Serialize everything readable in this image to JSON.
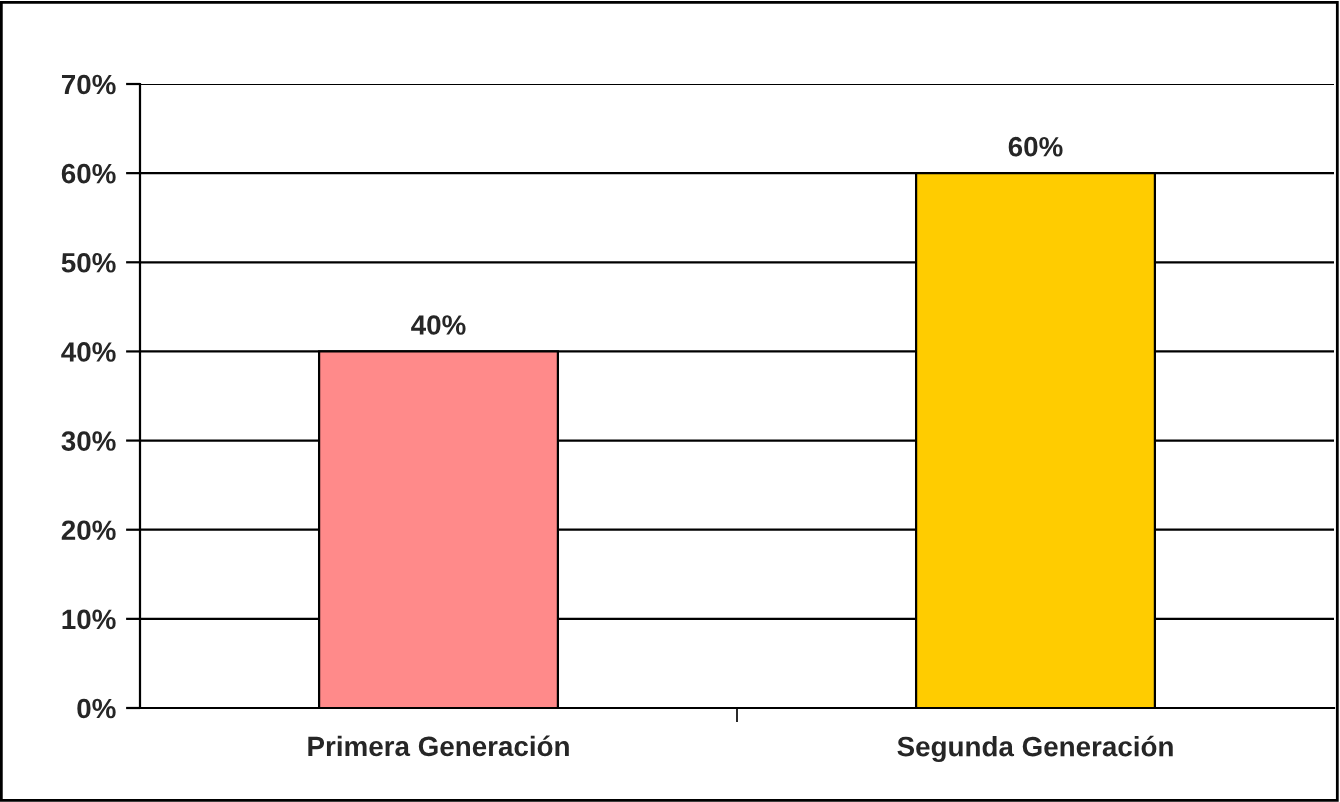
{
  "chart_data": {
    "type": "bar",
    "categories": [
      "Primera Generación",
      "Segunda Generación"
    ],
    "values": [
      40,
      60
    ],
    "colors": [
      "#ff8a8a",
      "#ffcc00"
    ],
    "value_labels": [
      "40%",
      "60%"
    ],
    "ylim": [
      0,
      70
    ],
    "yticks": [
      {
        "value": 0,
        "label": "0%"
      },
      {
        "value": 10,
        "label": "10%"
      },
      {
        "value": 20,
        "label": "20%"
      },
      {
        "value": 30,
        "label": "30%"
      },
      {
        "value": 40,
        "label": "40%"
      },
      {
        "value": 50,
        "label": "50%"
      },
      {
        "value": 60,
        "label": "60%"
      },
      {
        "value": 70,
        "label": "70%"
      }
    ],
    "grid": "y",
    "legend": false
  }
}
